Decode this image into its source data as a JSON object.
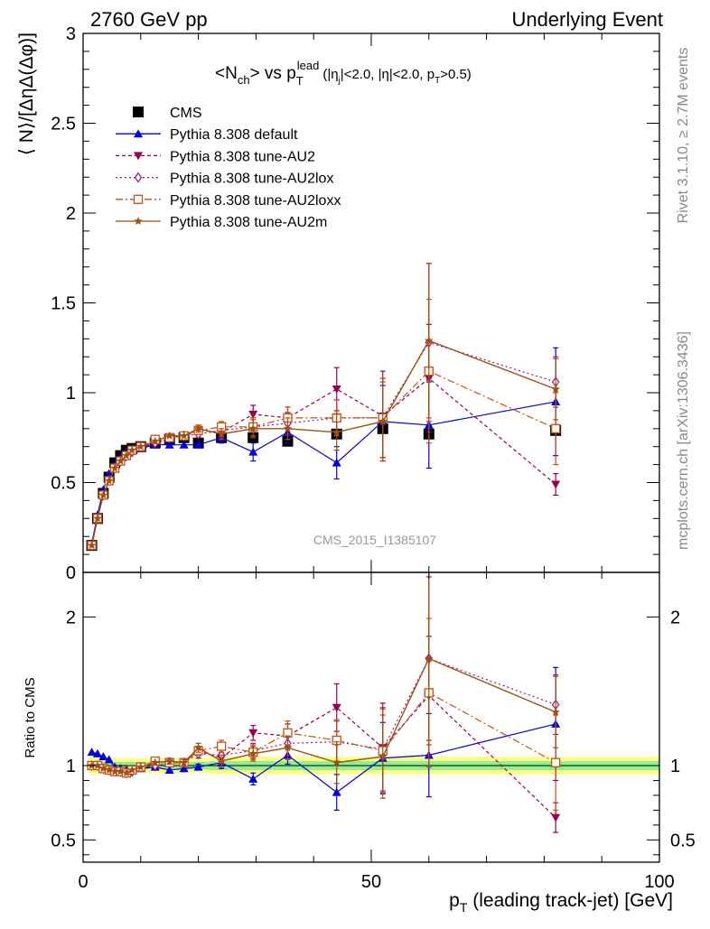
{
  "header": {
    "left": "2760 GeV pp",
    "right": "Underlying Event"
  },
  "side_text": {
    "rivet": "Rivet 3.1.10, ≥ 2.7M events",
    "mcplots": "mcplots.cern.ch [arXiv:1306.3436]"
  },
  "analysis_id": "CMS_2015_I1385107",
  "colors": {
    "CMS": "#000000",
    "default": "#0000dd",
    "AU2": "#99004d",
    "AU2lox": "#a0107a",
    "AU2loxx": "#c85010",
    "AU2m": "#a05010",
    "band_inner": "#90ee90",
    "band_outer": "#ffff88"
  },
  "chart_data": [
    {
      "panel": "main",
      "type": "line",
      "title_text": "<N_ch> vs p_T^lead (|η_j|<2.0, |η|<2.0, p_T>0.5)",
      "ylabel": "⟨ N⟩/[ΔηΔ(Δφ)]",
      "xlim": [
        0,
        100
      ],
      "ylim": [
        0,
        3
      ],
      "yticks": [
        "0",
        "0.5",
        "1",
        "1.5",
        "2",
        "2.5",
        "3"
      ],
      "legend_position": "top-left",
      "legend": [
        "CMS",
        "Pythia 8.308 default",
        "Pythia 8.308 tune-AU2",
        "Pythia 8.308 tune-AU2lox",
        "Pythia 8.308 tune-AU2loxx",
        "Pythia 8.308 tune-AU2m"
      ],
      "x": [
        1.5,
        2.5,
        3.5,
        4.5,
        5.5,
        6.5,
        7.5,
        8.5,
        10.0,
        12.5,
        15.0,
        17.5,
        20.0,
        24.0,
        29.5,
        35.5,
        44.0,
        52.0,
        60.0,
        82.0
      ],
      "series": [
        {
          "name": "CMS",
          "key": "CMS",
          "values": [
            0.15,
            0.3,
            0.44,
            0.53,
            0.61,
            0.65,
            0.68,
            0.69,
            0.7,
            0.72,
            0.74,
            0.75,
            0.72,
            0.75,
            0.75,
            0.73,
            0.77,
            0.8,
            0.77,
            0.79
          ]
        },
        {
          "name": "Pythia 8.308 default",
          "key": "default",
          "values": [
            0.16,
            0.32,
            0.46,
            0.55,
            0.6,
            0.64,
            0.67,
            0.68,
            0.69,
            0.71,
            0.71,
            0.71,
            0.71,
            0.75,
            0.67,
            0.78,
            0.61,
            0.84,
            0.82,
            0.95
          ],
          "errors": [
            0.005,
            0.005,
            0.005,
            0.005,
            0.005,
            0.005,
            0.005,
            0.006,
            0.008,
            0.01,
            0.01,
            0.015,
            0.015,
            0.03,
            0.05,
            0.06,
            0.09,
            0.2,
            0.24,
            0.3
          ]
        },
        {
          "name": "Pythia 8.308 tune-AU2",
          "key": "AU2",
          "values": [
            0.15,
            0.3,
            0.43,
            0.51,
            0.58,
            0.62,
            0.65,
            0.67,
            0.7,
            0.71,
            0.75,
            0.76,
            0.79,
            0.78,
            0.88,
            0.86,
            1.02,
            0.87,
            1.08,
            0.49
          ],
          "errors": [
            0.005,
            0.005,
            0.005,
            0.005,
            0.005,
            0.005,
            0.005,
            0.006,
            0.008,
            0.01,
            0.01,
            0.015,
            0.02,
            0.03,
            0.05,
            0.06,
            0.12,
            0.25,
            0.3,
            0.06
          ]
        },
        {
          "name": "Pythia 8.308 tune-AU2lox",
          "key": "AU2lox",
          "values": [
            0.15,
            0.3,
            0.43,
            0.51,
            0.58,
            0.62,
            0.65,
            0.67,
            0.7,
            0.72,
            0.75,
            0.76,
            0.77,
            0.79,
            0.81,
            0.83,
            0.86,
            0.86,
            1.28,
            1.06
          ],
          "errors": [
            0.005,
            0.005,
            0.005,
            0.005,
            0.005,
            0.005,
            0.005,
            0.006,
            0.008,
            0.01,
            0.01,
            0.015,
            0.02,
            0.03,
            0.05,
            0.06,
            0.1,
            0.22,
            0.44,
            0.14
          ]
        },
        {
          "name": "Pythia 8.308 tune-AU2loxx",
          "key": "AU2loxx",
          "values": [
            0.15,
            0.3,
            0.43,
            0.51,
            0.58,
            0.62,
            0.65,
            0.68,
            0.7,
            0.74,
            0.75,
            0.76,
            0.79,
            0.81,
            0.81,
            0.86,
            0.86,
            0.86,
            1.12,
            0.8
          ],
          "errors": [
            0.005,
            0.005,
            0.005,
            0.005,
            0.005,
            0.005,
            0.005,
            0.006,
            0.008,
            0.01,
            0.01,
            0.015,
            0.02,
            0.03,
            0.05,
            0.06,
            0.1,
            0.22,
            0.4,
            0.2
          ]
        },
        {
          "name": "Pythia 8.308 tune-AU2m",
          "key": "AU2m",
          "values": [
            0.15,
            0.3,
            0.43,
            0.51,
            0.58,
            0.62,
            0.65,
            0.68,
            0.7,
            0.73,
            0.76,
            0.76,
            0.8,
            0.77,
            0.8,
            0.8,
            0.78,
            0.84,
            1.29,
            1.02
          ],
          "errors": [
            0.005,
            0.005,
            0.005,
            0.005,
            0.005,
            0.005,
            0.005,
            0.006,
            0.008,
            0.01,
            0.01,
            0.015,
            0.02,
            0.03,
            0.05,
            0.06,
            0.1,
            0.22,
            0.43,
            0.17
          ]
        }
      ]
    },
    {
      "panel": "ratio",
      "type": "line",
      "ylabel": "Ratio to CMS",
      "xlabel": "p_T (leading track-jet) [GeV]",
      "xlim": [
        0,
        100
      ],
      "ylim": [
        0.35,
        2.3
      ],
      "yticks": [
        "0.5",
        "1",
        "2"
      ],
      "xticks": [
        "0",
        "50",
        "100"
      ],
      "x": [
        1.5,
        2.5,
        3.5,
        4.5,
        5.5,
        6.5,
        7.5,
        8.5,
        10.0,
        12.5,
        15.0,
        17.5,
        20.0,
        24.0,
        29.5,
        35.5,
        44.0,
        52.0,
        60.0,
        82.0
      ],
      "band_inner": [
        0.03,
        0.03,
        0.025,
        0.025,
        0.025,
        0.025,
        0.025,
        0.025,
        0.025,
        0.025,
        0.025,
        0.025,
        0.025,
        0.03,
        0.03,
        0.03,
        0.03,
        0.03,
        0.03,
        0.03
      ],
      "band_outer": [
        0.06,
        0.06,
        0.05,
        0.05,
        0.05,
        0.05,
        0.05,
        0.05,
        0.05,
        0.05,
        0.05,
        0.05,
        0.05,
        0.06,
        0.06,
        0.06,
        0.06,
        0.06,
        0.06,
        0.06
      ],
      "series": [
        {
          "name": "Pythia 8.308 default",
          "key": "default",
          "values": [
            1.09,
            1.08,
            1.06,
            1.04,
            0.99,
            0.98,
            0.97,
            0.97,
            0.98,
            0.99,
            0.97,
            0.98,
            0.99,
            1.02,
            0.91,
            1.07,
            0.82,
            1.05,
            1.07,
            1.28
          ],
          "errors": [
            0.01,
            0.01,
            0.01,
            0.01,
            0.01,
            0.01,
            0.01,
            0.01,
            0.012,
            0.015,
            0.015,
            0.02,
            0.02,
            0.04,
            0.04,
            0.06,
            0.12,
            0.24,
            0.28,
            0.38
          ]
        },
        {
          "name": "Pythia 8.308 tune-AU2",
          "key": "AU2",
          "values": [
            1.0,
            1.0,
            0.98,
            0.97,
            0.96,
            0.96,
            0.95,
            0.96,
            0.99,
            0.99,
            1.02,
            1.02,
            1.1,
            1.05,
            1.22,
            1.2,
            1.39,
            1.12,
            1.47,
            0.65
          ],
          "errors": [
            0.01,
            0.01,
            0.01,
            0.01,
            0.01,
            0.01,
            0.01,
            0.01,
            0.012,
            0.015,
            0.02,
            0.02,
            0.03,
            0.04,
            0.05,
            0.08,
            0.16,
            0.3,
            0.4,
            0.1
          ]
        },
        {
          "name": "Pythia 8.308 tune-AU2lox",
          "key": "AU2lox",
          "values": [
            1.0,
            1.0,
            0.98,
            0.97,
            0.96,
            0.96,
            0.95,
            0.96,
            0.99,
            1.0,
            1.02,
            1.02,
            1.08,
            1.07,
            1.1,
            1.15,
            1.16,
            1.11,
            1.72,
            1.41
          ],
          "errors": [
            0.01,
            0.01,
            0.01,
            0.01,
            0.01,
            0.01,
            0.01,
            0.01,
            0.012,
            0.015,
            0.02,
            0.02,
            0.03,
            0.04,
            0.05,
            0.08,
            0.14,
            0.28,
            0.55,
            0.2
          ]
        },
        {
          "name": "Pythia 8.308 tune-AU2loxx",
          "key": "AU2loxx",
          "values": [
            1.0,
            1.0,
            0.98,
            0.97,
            0.96,
            0.96,
            0.95,
            0.97,
            0.99,
            1.03,
            1.02,
            1.02,
            1.1,
            1.13,
            1.09,
            1.22,
            1.17,
            1.1,
            1.49,
            1.02
          ],
          "errors": [
            0.01,
            0.01,
            0.01,
            0.01,
            0.01,
            0.01,
            0.01,
            0.01,
            0.012,
            0.015,
            0.02,
            0.02,
            0.03,
            0.04,
            0.05,
            0.08,
            0.14,
            0.28,
            0.5,
            0.32
          ]
        },
        {
          "name": "Pythia 8.308 tune-AU2m",
          "key": "AU2m",
          "values": [
            1.0,
            1.0,
            0.98,
            0.97,
            0.96,
            0.96,
            0.95,
            0.97,
            0.99,
            1.02,
            1.03,
            1.02,
            1.12,
            1.03,
            1.08,
            1.12,
            1.02,
            1.06,
            1.72,
            1.36
          ],
          "errors": [
            0.01,
            0.01,
            0.01,
            0.01,
            0.01,
            0.01,
            0.01,
            0.01,
            0.012,
            0.015,
            0.02,
            0.02,
            0.03,
            0.04,
            0.05,
            0.08,
            0.14,
            0.28,
            0.58,
            0.24
          ]
        }
      ]
    }
  ]
}
